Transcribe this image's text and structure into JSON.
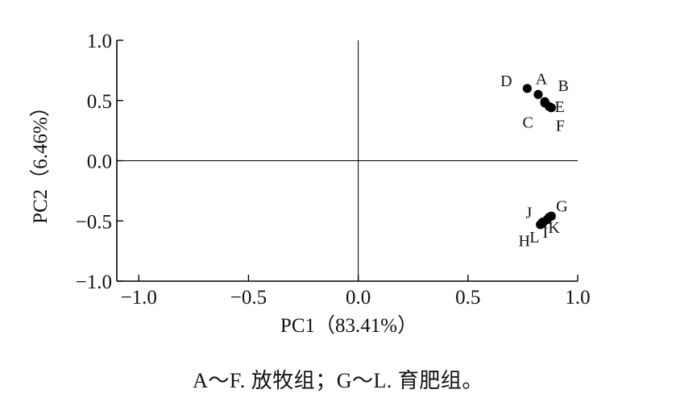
{
  "chart_data": {
    "type": "scatter",
    "xlabel": "PC1（83.41%）",
    "ylabel": "PC2（6.46%）",
    "xlim": [
      -1.1,
      1.0
    ],
    "ylim": [
      -1.0,
      1.0
    ],
    "xticks": [
      -1.0,
      -0.5,
      0.0,
      0.5,
      1.0
    ],
    "yticks": [
      -1.0,
      -0.5,
      0.0,
      0.5,
      1.0
    ],
    "xtick_labels": [
      "−1.0",
      "−0.5",
      "0.0",
      "0.5",
      "1.0"
    ],
    "ytick_labels": [
      "−1.0",
      "−0.5",
      "0.0",
      "0.5",
      "1.0"
    ],
    "zero_lines": true,
    "grid": false,
    "legend": "none",
    "points": [
      {
        "label": "A",
        "x": 0.82,
        "y": 0.55
      },
      {
        "label": "B",
        "x": 0.85,
        "y": 0.49
      },
      {
        "label": "C",
        "x": 0.85,
        "y": 0.48
      },
      {
        "label": "D",
        "x": 0.77,
        "y": 0.6
      },
      {
        "label": "E",
        "x": 0.87,
        "y": 0.45
      },
      {
        "label": "F",
        "x": 0.88,
        "y": 0.44
      },
      {
        "label": "G",
        "x": 0.88,
        "y": -0.46
      },
      {
        "label": "H",
        "x": 0.83,
        "y": -0.53
      },
      {
        "label": "I",
        "x": 0.86,
        "y": -0.49
      },
      {
        "label": "J",
        "x": 0.84,
        "y": -0.51
      },
      {
        "label": "K",
        "x": 0.87,
        "y": -0.47
      },
      {
        "label": "L",
        "x": 0.84,
        "y": -0.52
      }
    ],
    "marker_color": "#000000",
    "axis_color": "#000000"
  },
  "caption": "A～F. 放牧组；G～L. 育肥组。"
}
